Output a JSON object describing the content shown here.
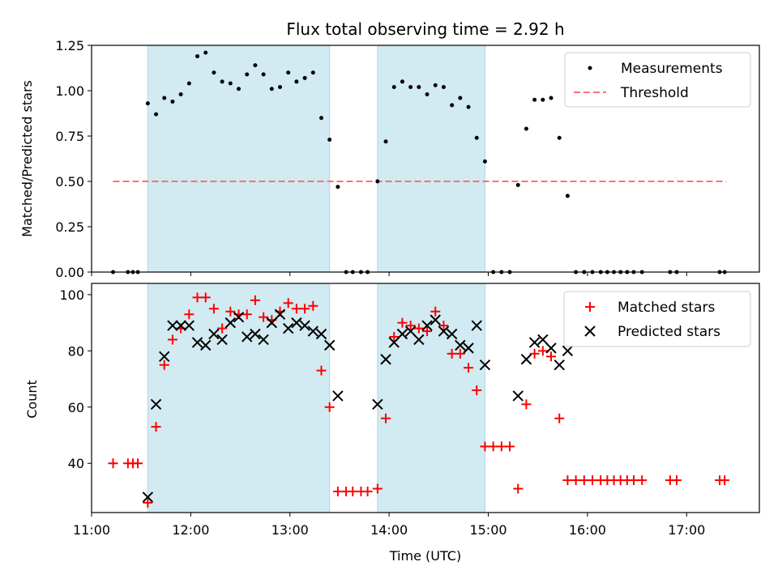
{
  "title": "Flux total observing time = 2.92 h",
  "colors": {
    "measurements": "#000000",
    "threshold": "#ff7070",
    "matched": "#ff0000",
    "predicted": "#000000",
    "span": "#add8e6"
  },
  "chart_data": [
    {
      "type": "scatter",
      "ylabel": "Matched/Predicted stars",
      "xlabel": "",
      "xlim": [
        "11:00",
        "17:44"
      ],
      "ylim": [
        0,
        1.25
      ],
      "yticks": [
        "0.00",
        "0.25",
        "0.50",
        "0.75",
        "1.00",
        "1.25"
      ],
      "legend": {
        "placement": "top-right",
        "entries": [
          "Measurements",
          "Threshold"
        ]
      },
      "shaded_spans": [
        [
          "11:34",
          "13:24"
        ],
        [
          "13:53",
          "14:58"
        ]
      ],
      "threshold": {
        "name": "Threshold",
        "y": 0.5,
        "x_range": [
          "11:13",
          "17:24"
        ]
      },
      "series": [
        {
          "name": "Measurements",
          "points": [
            [
              "11:13",
              0.0
            ],
            [
              "11:22",
              0.0
            ],
            [
              "11:25",
              0.0
            ],
            [
              "11:28",
              0.0
            ],
            [
              "11:34",
              0.93
            ],
            [
              "11:39",
              0.87
            ],
            [
              "11:44",
              0.96
            ],
            [
              "11:49",
              0.94
            ],
            [
              "11:54",
              0.98
            ],
            [
              "11:59",
              1.04
            ],
            [
              "12:04",
              1.19
            ],
            [
              "12:09",
              1.21
            ],
            [
              "12:14",
              1.1
            ],
            [
              "12:19",
              1.05
            ],
            [
              "12:24",
              1.04
            ],
            [
              "12:29",
              1.01
            ],
            [
              "12:34",
              1.09
            ],
            [
              "12:39",
              1.14
            ],
            [
              "12:44",
              1.09
            ],
            [
              "12:49",
              1.01
            ],
            [
              "12:54",
              1.02
            ],
            [
              "12:59",
              1.1
            ],
            [
              "13:04",
              1.05
            ],
            [
              "13:09",
              1.07
            ],
            [
              "13:14",
              1.1
            ],
            [
              "13:19",
              0.85
            ],
            [
              "13:24",
              0.73
            ],
            [
              "13:29",
              0.47
            ],
            [
              "13:34",
              0.0
            ],
            [
              "13:38",
              0.0
            ],
            [
              "13:43",
              0.0
            ],
            [
              "13:47",
              0.0
            ],
            [
              "13:53",
              0.5
            ],
            [
              "13:58",
              0.72
            ],
            [
              "14:03",
              1.02
            ],
            [
              "14:08",
              1.05
            ],
            [
              "14:13",
              1.02
            ],
            [
              "14:18",
              1.02
            ],
            [
              "14:23",
              0.98
            ],
            [
              "14:28",
              1.03
            ],
            [
              "14:33",
              1.02
            ],
            [
              "14:38",
              0.92
            ],
            [
              "14:43",
              0.96
            ],
            [
              "14:48",
              0.91
            ],
            [
              "14:53",
              0.74
            ],
            [
              "14:58",
              0.61
            ],
            [
              "15:03",
              0.0
            ],
            [
              "15:08",
              0.0
            ],
            [
              "15:13",
              0.0
            ],
            [
              "15:18",
              0.48
            ],
            [
              "15:23",
              0.79
            ],
            [
              "15:28",
              0.95
            ],
            [
              "15:33",
              0.95
            ],
            [
              "15:38",
              0.96
            ],
            [
              "15:43",
              0.74
            ],
            [
              "15:48",
              0.42
            ],
            [
              "15:53",
              0.0
            ],
            [
              "15:58",
              0.0
            ],
            [
              "16:03",
              0.0
            ],
            [
              "16:08",
              0.0
            ],
            [
              "16:12",
              0.0
            ],
            [
              "16:16",
              0.0
            ],
            [
              "16:20",
              0.0
            ],
            [
              "16:24",
              0.0
            ],
            [
              "16:28",
              0.0
            ],
            [
              "16:33",
              0.0
            ],
            [
              "16:50",
              0.0
            ],
            [
              "16:54",
              0.0
            ],
            [
              "17:20",
              0.0
            ],
            [
              "17:23",
              0.0
            ]
          ]
        }
      ]
    },
    {
      "type": "scatter",
      "xlabel": "Time (UTC)",
      "ylabel": "Count",
      "xlim": [
        "11:00",
        "17:44"
      ],
      "ylim": [
        22.5,
        104
      ],
      "xticks": [
        "11:00",
        "12:00",
        "13:00",
        "14:00",
        "15:00",
        "16:00",
        "17:00"
      ],
      "yticks": [
        "40",
        "60",
        "80",
        "100"
      ],
      "legend": {
        "placement": "top-right",
        "entries": [
          "Matched stars",
          "Predicted stars"
        ]
      },
      "shaded_spans": [
        [
          "11:34",
          "13:24"
        ],
        [
          "13:53",
          "14:58"
        ]
      ],
      "series": [
        {
          "name": "Matched stars",
          "points": [
            [
              "11:13",
              40
            ],
            [
              "11:22",
              40
            ],
            [
              "11:25",
              40
            ],
            [
              "11:28",
              40
            ],
            [
              "11:34",
              26
            ],
            [
              "11:39",
              53
            ],
            [
              "11:44",
              75
            ],
            [
              "11:49",
              84
            ],
            [
              "11:54",
              88
            ],
            [
              "11:59",
              93
            ],
            [
              "12:04",
              99
            ],
            [
              "12:09",
              99
            ],
            [
              "12:14",
              95
            ],
            [
              "12:19",
              88
            ],
            [
              "12:24",
              94
            ],
            [
              "12:29",
              93
            ],
            [
              "12:34",
              93
            ],
            [
              "12:39",
              98
            ],
            [
              "12:44",
              92
            ],
            [
              "12:49",
              91
            ],
            [
              "12:54",
              94
            ],
            [
              "12:59",
              97
            ],
            [
              "13:04",
              95
            ],
            [
              "13:09",
              95
            ],
            [
              "13:14",
              96
            ],
            [
              "13:19",
              73
            ],
            [
              "13:24",
              60
            ],
            [
              "13:29",
              30
            ],
            [
              "13:34",
              30
            ],
            [
              "13:38",
              30
            ],
            [
              "13:43",
              30
            ],
            [
              "13:47",
              30
            ],
            [
              "13:53",
              31
            ],
            [
              "13:58",
              56
            ],
            [
              "14:03",
              85
            ],
            [
              "14:08",
              90
            ],
            [
              "14:13",
              89
            ],
            [
              "14:18",
              88
            ],
            [
              "14:23",
              87
            ],
            [
              "14:28",
              94
            ],
            [
              "14:33",
              89
            ],
            [
              "14:38",
              79
            ],
            [
              "14:43",
              79
            ],
            [
              "14:48",
              74
            ],
            [
              "14:53",
              66
            ],
            [
              "14:58",
              46
            ],
            [
              "15:03",
              46
            ],
            [
              "15:08",
              46
            ],
            [
              "15:13",
              46
            ],
            [
              "15:18",
              31
            ],
            [
              "15:23",
              61
            ],
            [
              "15:28",
              79
            ],
            [
              "15:33",
              80
            ],
            [
              "15:38",
              78
            ],
            [
              "15:43",
              56
            ],
            [
              "15:48",
              34
            ],
            [
              "15:53",
              34
            ],
            [
              "15:58",
              34
            ],
            [
              "16:03",
              34
            ],
            [
              "16:08",
              34
            ],
            [
              "16:12",
              34
            ],
            [
              "16:16",
              34
            ],
            [
              "16:20",
              34
            ],
            [
              "16:24",
              34
            ],
            [
              "16:28",
              34
            ],
            [
              "16:33",
              34
            ],
            [
              "16:50",
              34
            ],
            [
              "16:54",
              34
            ],
            [
              "17:20",
              34
            ],
            [
              "17:23",
              34
            ]
          ]
        },
        {
          "name": "Predicted stars",
          "points": [
            [
              "11:34",
              28
            ],
            [
              "11:39",
              61
            ],
            [
              "11:44",
              78
            ],
            [
              "11:49",
              89
            ],
            [
              "11:54",
              89
            ],
            [
              "11:59",
              89
            ],
            [
              "12:04",
              83
            ],
            [
              "12:09",
              82
            ],
            [
              "12:14",
              86
            ],
            [
              "12:19",
              84
            ],
            [
              "12:24",
              90
            ],
            [
              "12:29",
              92
            ],
            [
              "12:34",
              85
            ],
            [
              "12:39",
              86
            ],
            [
              "12:44",
              84
            ],
            [
              "12:49",
              90
            ],
            [
              "12:54",
              93
            ],
            [
              "12:59",
              88
            ],
            [
              "13:04",
              90
            ],
            [
              "13:09",
              89
            ],
            [
              "13:14",
              87
            ],
            [
              "13:19",
              86
            ],
            [
              "13:24",
              82
            ],
            [
              "13:29",
              64
            ],
            [
              "13:53",
              61
            ],
            [
              "13:58",
              77
            ],
            [
              "14:03",
              83
            ],
            [
              "14:08",
              86
            ],
            [
              "14:13",
              87
            ],
            [
              "14:18",
              84
            ],
            [
              "14:23",
              89
            ],
            [
              "14:28",
              91
            ],
            [
              "14:33",
              87
            ],
            [
              "14:38",
              86
            ],
            [
              "14:43",
              82
            ],
            [
              "14:48",
              81
            ],
            [
              "14:53",
              89
            ],
            [
              "14:58",
              75
            ],
            [
              "15:18",
              64
            ],
            [
              "15:23",
              77
            ],
            [
              "15:28",
              83
            ],
            [
              "15:33",
              84
            ],
            [
              "15:38",
              81
            ],
            [
              "15:43",
              75
            ],
            [
              "15:48",
              80
            ]
          ]
        }
      ]
    }
  ]
}
